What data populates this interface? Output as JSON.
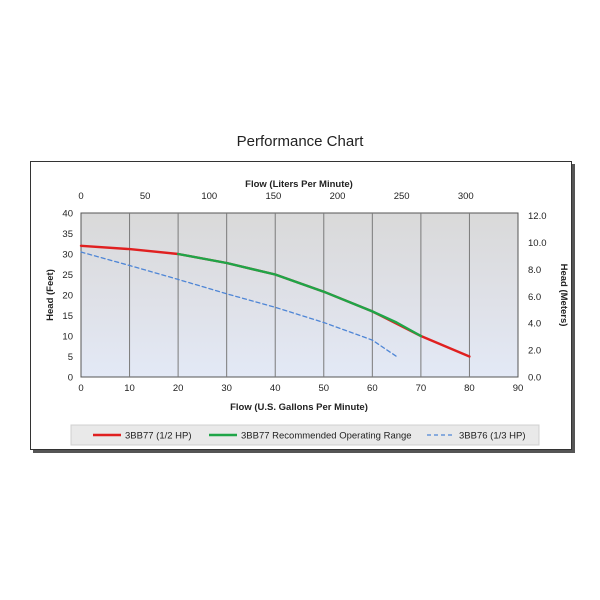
{
  "page": {
    "title": "Performance Chart"
  },
  "chart_data": {
    "type": "line",
    "xlabel": "Flow (U.S. Gallons Per Minute)",
    "x_top_label": "Flow (Liters Per Minute)",
    "ylabel": "Head (Feet)",
    "y_right_label": "Head (Meters)",
    "xlim": [
      0,
      90
    ],
    "ylim": [
      0,
      40
    ],
    "x_top_lim": [
      0,
      340.7
    ],
    "y_right_lim": [
      0,
      12.19
    ],
    "x_ticks": [
      "0",
      "10",
      "20",
      "30",
      "40",
      "50",
      "60",
      "70",
      "80",
      "90"
    ],
    "y_ticks": [
      "0",
      "5",
      "10",
      "15",
      "20",
      "25",
      "30",
      "35",
      "40"
    ],
    "x_top_ticks": [
      "0",
      "50",
      "100",
      "150",
      "200",
      "250",
      "300"
    ],
    "y_right_ticks": [
      "0.0",
      "2.0",
      "4.0",
      "6.0",
      "8.0",
      "10.0",
      "12.0"
    ],
    "grid": "vertical",
    "legend_position": "bottom",
    "series": [
      {
        "name": "3BB77 (1/2 HP)",
        "color": "#e02020",
        "style": "solid",
        "x": [
          0,
          10,
          20,
          30,
          40,
          50,
          60,
          70,
          80
        ],
        "y": [
          32,
          31.2,
          30,
          27.8,
          25,
          20.8,
          16,
          10,
          5
        ]
      },
      {
        "name": "3BB77 Recommended Operating Range",
        "color": "#1fa548",
        "style": "solid",
        "x": [
          20,
          30,
          40,
          50,
          60,
          65,
          70
        ],
        "y": [
          30,
          27.8,
          25,
          20.8,
          16,
          13.3,
          10
        ]
      },
      {
        "name": "3BB76 (1/3 HP)",
        "color": "#4f86d6",
        "style": "dashed",
        "x": [
          0,
          10,
          20,
          30,
          40,
          50,
          60,
          65
        ],
        "y": [
          30.5,
          27.2,
          23.8,
          20.3,
          17,
          13.3,
          9,
          5
        ]
      }
    ]
  }
}
